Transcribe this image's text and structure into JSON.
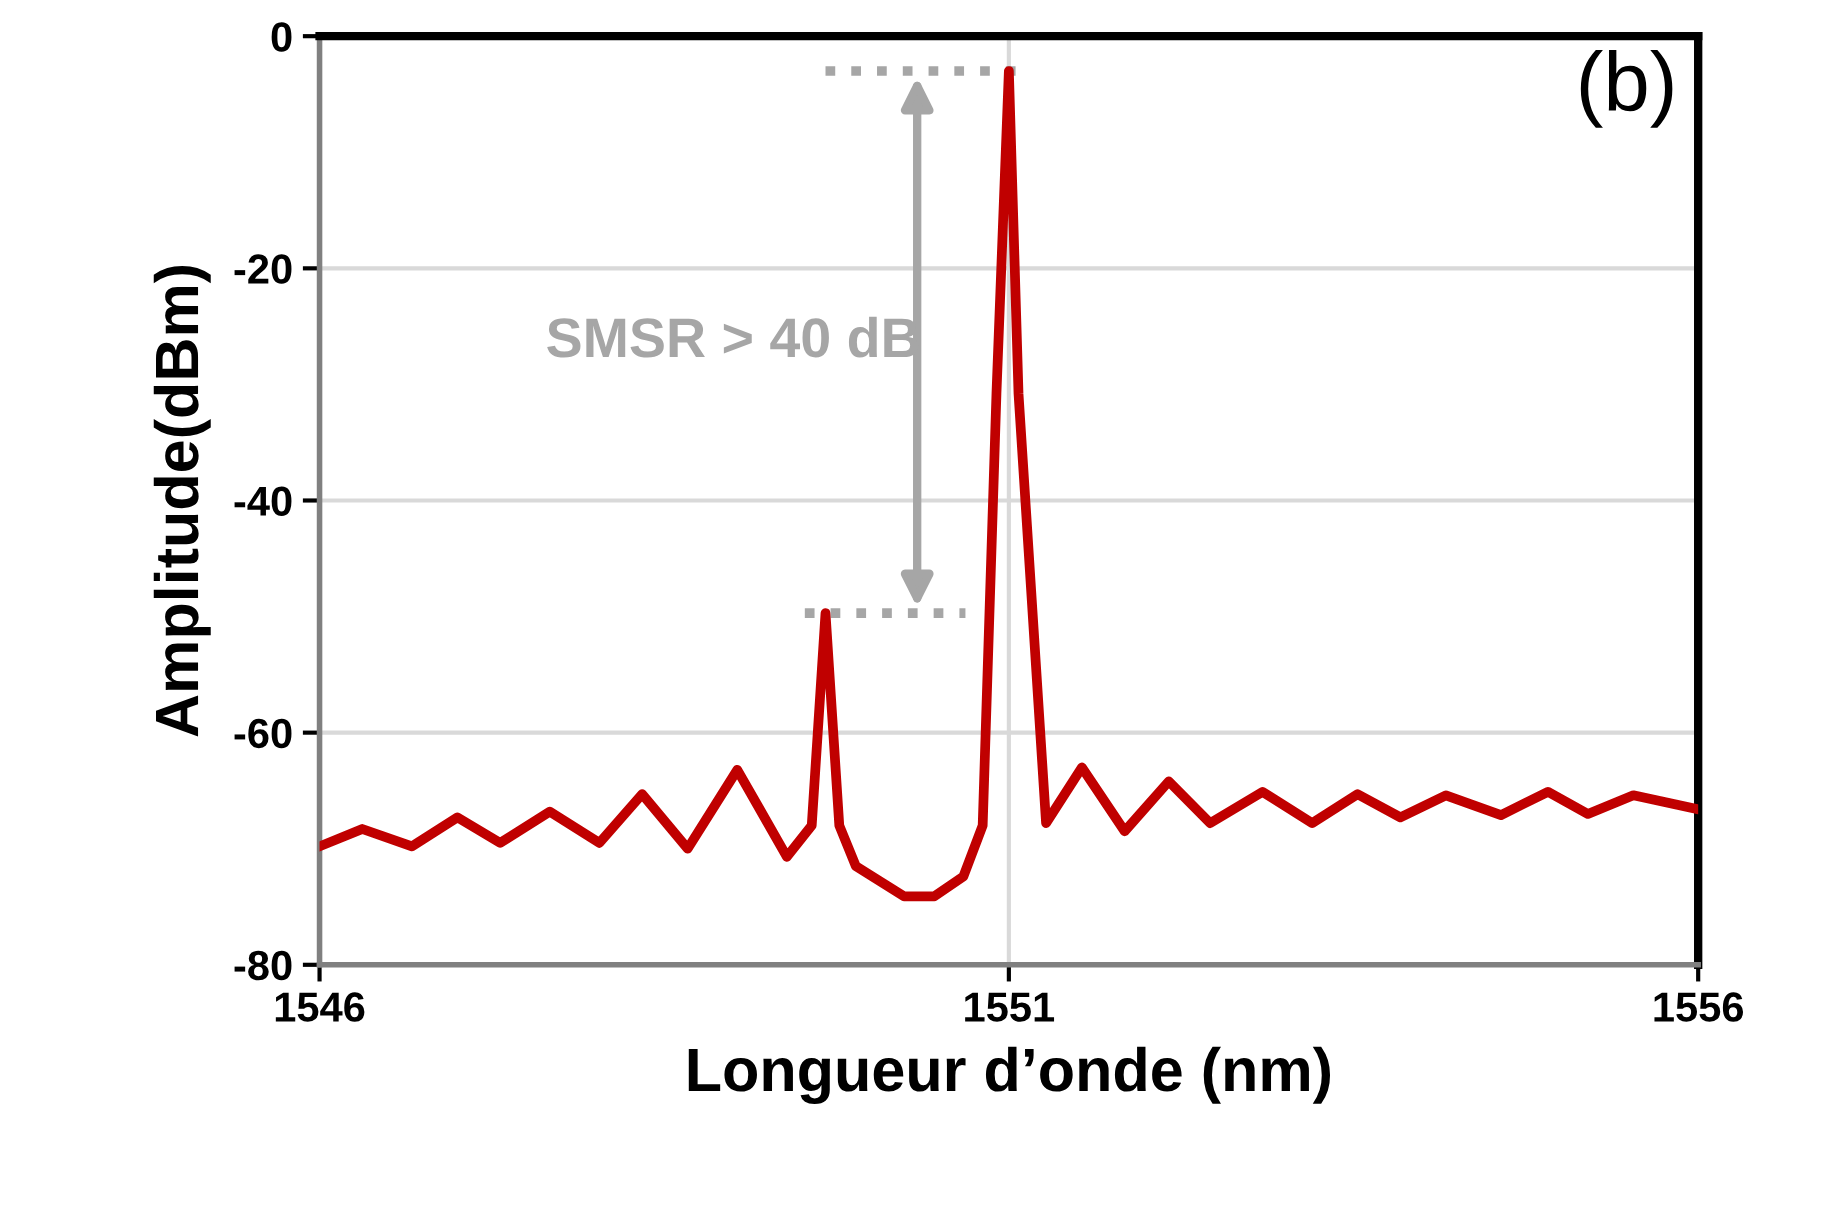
{
  "chart_data": {
    "type": "line",
    "xlabel": "Longueur d’onde (nm)",
    "ylabel": "Amplitude(dBm)",
    "annotations": [
      "(b)",
      "SMSR > 40 dB"
    ],
    "series": [
      {
        "color": "#c00000",
        "x": [
          1546.0,
          1546.31,
          1546.67,
          1547.0,
          1547.31,
          1547.67,
          1548.03,
          1548.34,
          1548.67,
          1549.03,
          1549.39,
          1549.57,
          1549.67,
          1549.77,
          1549.89,
          1550.24,
          1550.46,
          1550.67,
          1550.81,
          1550.91,
          1551.0,
          1551.07,
          1551.27,
          1551.53,
          1551.84,
          1552.16,
          1552.46,
          1552.84,
          1553.2,
          1553.53,
          1553.84,
          1554.17,
          1554.57,
          1554.91,
          1555.2,
          1555.53,
          1556.0
        ],
        "values": [
          -69.8,
          -68.3,
          -69.8,
          -67.3,
          -69.5,
          -66.8,
          -69.5,
          -65.3,
          -70.0,
          -63.2,
          -70.7,
          -68.0,
          -49.7,
          -68.0,
          -71.5,
          -74.1,
          -74.1,
          -72.4,
          -68.0,
          -30.8,
          -3.0,
          -30.8,
          -67.8,
          -63.0,
          -68.5,
          -64.2,
          -67.8,
          -65.1,
          -67.8,
          -65.3,
          -67.3,
          -65.4,
          -67.1,
          -65.1,
          -67.0,
          -65.4,
          -66.6
        ]
      }
    ],
    "xlim": [
      1546,
      1556
    ],
    "xticks": [
      1546,
      1551,
      1556
    ],
    "ylim": [
      -80,
      0
    ],
    "yticks": [
      -80,
      -60,
      -40,
      -20,
      0
    ],
    "grid": true,
    "legend": false,
    "marker": "none",
    "line_style": "solid"
  }
}
